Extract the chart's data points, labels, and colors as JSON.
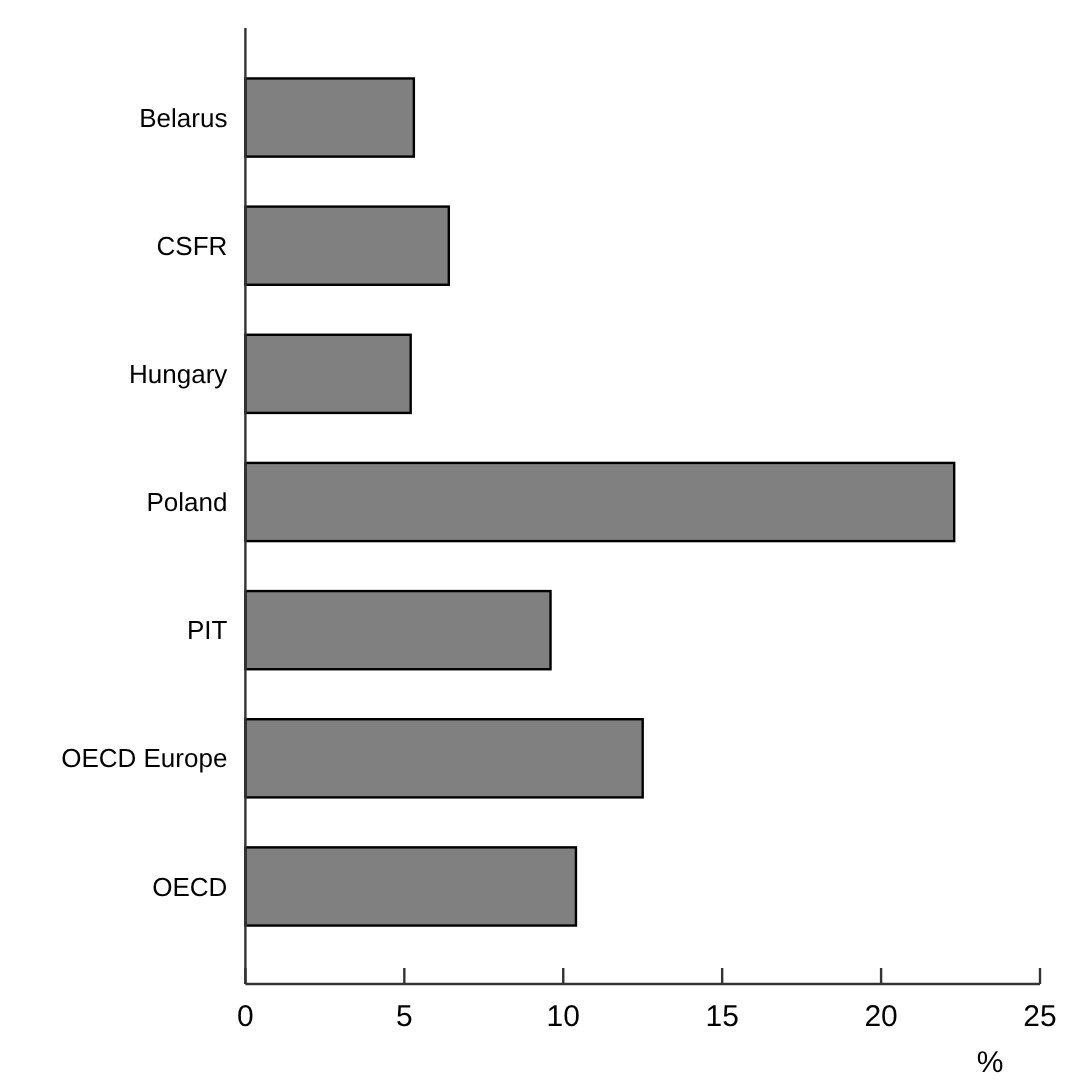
{
  "chart_data": {
    "type": "bar",
    "orientation": "horizontal",
    "xlabel": "%",
    "categories": [
      "Belarus",
      "CSFR",
      "Hungary",
      "Poland",
      "PIT",
      "OECD Europe",
      "OECD"
    ],
    "values": [
      5.3,
      6.4,
      5.2,
      22.3,
      9.6,
      12.5,
      10.4
    ],
    "color": "#808080",
    "xlim": [
      0,
      25
    ],
    "xticks": [
      0,
      5,
      10,
      15,
      20,
      25
    ],
    "grid": false
  }
}
